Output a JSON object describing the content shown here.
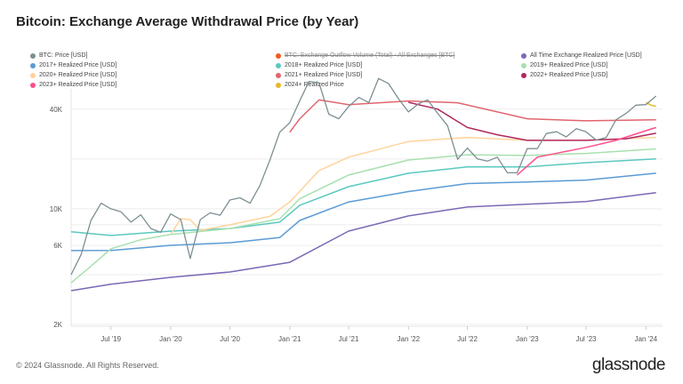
{
  "title": "Bitcoin: Exchange Average Withdrawal Price (by Year)",
  "footer": "© 2024 Glassnode. All Rights Reserved.",
  "logo": "glassnode",
  "legend": [
    {
      "label": "BTC: Price [USD]",
      "color": "#7d8f93"
    },
    {
      "label": "BTC: Exchange Outflow Volume (Total) - All Exchanges [BTC]",
      "color": "#f25a1e",
      "hidden": true
    },
    {
      "label": "All Time Exchange Realized Price [USD]",
      "color": "#7b68b5"
    },
    {
      "label": "2017+ Realized Price [USD]",
      "color": "#5b9bd5"
    },
    {
      "label": "2018+ Realized Price [USD]",
      "color": "#5bc8bf"
    },
    {
      "label": "2019+ Realized Price [USD]",
      "color": "#a8e0b0"
    },
    {
      "label": "2020+ Realized Price [USD]",
      "color": "#ffd39a"
    },
    {
      "label": "2021+ Realized Price [USD]",
      "color": "#e0656f"
    },
    {
      "label": "2022+ Realized Price [USD]",
      "color": "#b0285e"
    },
    {
      "label": "2023+ Realized Price [USD]",
      "color": "#ff4f8b"
    },
    {
      "label": "2024+ Realized Price",
      "color": "#e8b82a"
    }
  ],
  "chart_data": {
    "type": "line",
    "title": "Bitcoin: Exchange Average Withdrawal Price (by Year)",
    "yscale": "log",
    "ylim": [
      2000,
      60000
    ],
    "xlim": [
      "2019-03",
      "2024-02"
    ],
    "yticks": [
      {
        "v": 2000,
        "label": "2K"
      },
      {
        "v": 6000,
        "label": "6K"
      },
      {
        "v": 10000,
        "label": "10K"
      },
      {
        "v": 40000,
        "label": "40K"
      }
    ],
    "ygrid": [
      4000,
      8000,
      20000
    ],
    "xticks": [
      {
        "d": "2019-07",
        "label": "Jul '19"
      },
      {
        "d": "2020-01",
        "label": "Jan '20"
      },
      {
        "d": "2020-07",
        "label": "Jul '20"
      },
      {
        "d": "2021-01",
        "label": "Jan '21"
      },
      {
        "d": "2021-07",
        "label": "Jul '21"
      },
      {
        "d": "2022-01",
        "label": "Jan '22"
      },
      {
        "d": "2022-07",
        "label": "Jul '22"
      },
      {
        "d": "2023-01",
        "label": "Jan '23"
      },
      {
        "d": "2023-07",
        "label": "Jul '23"
      },
      {
        "d": "2024-01",
        "label": "Jan '24"
      }
    ],
    "grid": true,
    "legend_position": "top",
    "series": [
      {
        "name": "All Time Exchange Realized Price [USD]",
        "color": "#7b68b5",
        "points": [
          [
            "2019-03",
            3200
          ],
          [
            "2019-07",
            3500
          ],
          [
            "2020-01",
            3850
          ],
          [
            "2020-07",
            4150
          ],
          [
            "2021-01",
            4750
          ],
          [
            "2021-07",
            7330
          ],
          [
            "2022-01",
            9060
          ],
          [
            "2022-07",
            10250
          ],
          [
            "2023-01",
            10650
          ],
          [
            "2023-07",
            11050
          ],
          [
            "2024-02",
            12500
          ]
        ]
      },
      {
        "name": "2017+ Realized Price [USD]",
        "color": "#5b9bd5",
        "points": [
          [
            "2019-03",
            5590
          ],
          [
            "2019-07",
            5600
          ],
          [
            "2020-01",
            6010
          ],
          [
            "2020-07",
            6230
          ],
          [
            "2020-12",
            6700
          ],
          [
            "2021-02",
            8500
          ],
          [
            "2021-07",
            11000
          ],
          [
            "2022-01",
            12700
          ],
          [
            "2022-07",
            14200
          ],
          [
            "2023-01",
            14500
          ],
          [
            "2023-07",
            14900
          ],
          [
            "2024-02",
            16400
          ]
        ]
      },
      {
        "name": "2018+ Realized Price [USD]",
        "color": "#5bc8bf",
        "points": [
          [
            "2019-03",
            7260
          ],
          [
            "2019-07",
            6900
          ],
          [
            "2020-01",
            7330
          ],
          [
            "2020-07",
            7600
          ],
          [
            "2020-12",
            8300
          ],
          [
            "2021-02",
            10500
          ],
          [
            "2021-07",
            13600
          ],
          [
            "2022-01",
            16400
          ],
          [
            "2022-07",
            17900
          ],
          [
            "2023-01",
            17900
          ],
          [
            "2023-07",
            19000
          ],
          [
            "2024-02",
            20000
          ]
        ]
      },
      {
        "name": "2019+ Realized Price [USD]",
        "color": "#a8e0b0",
        "points": [
          [
            "2019-03",
            3570
          ],
          [
            "2019-05",
            4500
          ],
          [
            "2019-07",
            5720
          ],
          [
            "2019-10",
            6500
          ],
          [
            "2020-01",
            7000
          ],
          [
            "2020-07",
            7600
          ],
          [
            "2020-12",
            8700
          ],
          [
            "2021-02",
            11500
          ],
          [
            "2021-07",
            16000
          ],
          [
            "2022-01",
            19700
          ],
          [
            "2022-07",
            21200
          ],
          [
            "2023-01",
            21000
          ],
          [
            "2023-07",
            21600
          ],
          [
            "2024-02",
            23000
          ]
        ]
      },
      {
        "name": "2020+ Realized Price [USD]",
        "color": "#ffd39a",
        "points": [
          [
            "2020-01",
            7000
          ],
          [
            "2020-02",
            8700
          ],
          [
            "2020-03",
            8600
          ],
          [
            "2020-04",
            7400
          ],
          [
            "2020-07",
            8000
          ],
          [
            "2020-11",
            9000
          ],
          [
            "2021-01",
            11000
          ],
          [
            "2021-04",
            17000
          ],
          [
            "2021-07",
            20500
          ],
          [
            "2022-01",
            25500
          ],
          [
            "2022-07",
            27000
          ],
          [
            "2023-01",
            25900
          ],
          [
            "2023-07",
            26000
          ],
          [
            "2024-02",
            27000
          ]
        ]
      },
      {
        "name": "2021+ Realized Price [USD]",
        "color": "#e0656f",
        "points": [
          [
            "2021-01",
            29000
          ],
          [
            "2021-02",
            35000
          ],
          [
            "2021-04",
            45500
          ],
          [
            "2021-07",
            42600
          ],
          [
            "2022-01",
            44800
          ],
          [
            "2022-06",
            43700
          ],
          [
            "2023-01",
            35000
          ],
          [
            "2023-07",
            34000
          ],
          [
            "2024-02",
            34500
          ]
        ]
      },
      {
        "name": "2022+ Realized Price [USD]",
        "color": "#b0285e",
        "points": [
          [
            "2022-01",
            44000
          ],
          [
            "2022-04",
            40000
          ],
          [
            "2022-07",
            31000
          ],
          [
            "2022-10",
            28000
          ],
          [
            "2023-01",
            25900
          ],
          [
            "2023-07",
            25900
          ],
          [
            "2023-11",
            26500
          ],
          [
            "2024-02",
            28600
          ]
        ]
      },
      {
        "name": "2023+ Realized Price [USD]",
        "color": "#ff4f8b",
        "points": [
          [
            "2022-12",
            16000
          ],
          [
            "2023-02",
            20500
          ],
          [
            "2023-07",
            23500
          ],
          [
            "2023-10",
            25900
          ],
          [
            "2024-02",
            31000
          ]
        ]
      },
      {
        "name": "2024+ Realized Price",
        "color": "#e8b82a",
        "points": [
          [
            "2024-01",
            43800
          ],
          [
            "2024-01-20",
            42000
          ],
          [
            "2024-02",
            41600
          ]
        ]
      },
      {
        "name": "BTC: Price [USD]",
        "color": "#7d8f93",
        "points": [
          [
            "2019-03",
            4000
          ],
          [
            "2019-04",
            5300
          ],
          [
            "2019-05",
            8500
          ],
          [
            "2019-06",
            10800
          ],
          [
            "2019-07",
            10000
          ],
          [
            "2019-08",
            9600
          ],
          [
            "2019-09",
            8300
          ],
          [
            "2019-10",
            9200
          ],
          [
            "2019-11",
            7600
          ],
          [
            "2019-12",
            7200
          ],
          [
            "2020-01",
            9300
          ],
          [
            "2020-02",
            8600
          ],
          [
            "2020-03",
            5000
          ],
          [
            "2020-04",
            8600
          ],
          [
            "2020-05",
            9450
          ],
          [
            "2020-06",
            9140
          ],
          [
            "2020-07",
            11300
          ],
          [
            "2020-08",
            11650
          ],
          [
            "2020-09",
            10800
          ],
          [
            "2020-10",
            13800
          ],
          [
            "2020-11",
            19700
          ],
          [
            "2020-12",
            29000
          ],
          [
            "2021-01",
            33100
          ],
          [
            "2021-02",
            45000
          ],
          [
            "2021-03",
            58800
          ],
          [
            "2021-04",
            57700
          ],
          [
            "2021-05",
            37300
          ],
          [
            "2021-06",
            35000
          ],
          [
            "2021-07",
            41500
          ],
          [
            "2021-08",
            47100
          ],
          [
            "2021-09",
            43800
          ],
          [
            "2021-10",
            61300
          ],
          [
            "2021-11",
            57000
          ],
          [
            "2021-12",
            46300
          ],
          [
            "2022-01",
            38500
          ],
          [
            "2022-02",
            43200
          ],
          [
            "2022-03",
            45500
          ],
          [
            "2022-04",
            37700
          ],
          [
            "2022-05",
            31800
          ],
          [
            "2022-06",
            19900
          ],
          [
            "2022-07",
            23300
          ],
          [
            "2022-08",
            20000
          ],
          [
            "2022-09",
            19400
          ],
          [
            "2022-10",
            20500
          ],
          [
            "2022-11",
            16500
          ],
          [
            "2022-12",
            16500
          ],
          [
            "2023-01",
            23100
          ],
          [
            "2023-02",
            23100
          ],
          [
            "2023-03",
            28500
          ],
          [
            "2023-04",
            29200
          ],
          [
            "2023-05",
            27200
          ],
          [
            "2023-06",
            30500
          ],
          [
            "2023-07",
            29200
          ],
          [
            "2023-08",
            26000
          ],
          [
            "2023-09",
            27000
          ],
          [
            "2023-10",
            34500
          ],
          [
            "2023-11",
            37700
          ],
          [
            "2023-12",
            42300
          ],
          [
            "2024-01",
            42600
          ],
          [
            "2024-02",
            48000
          ]
        ]
      }
    ]
  }
}
